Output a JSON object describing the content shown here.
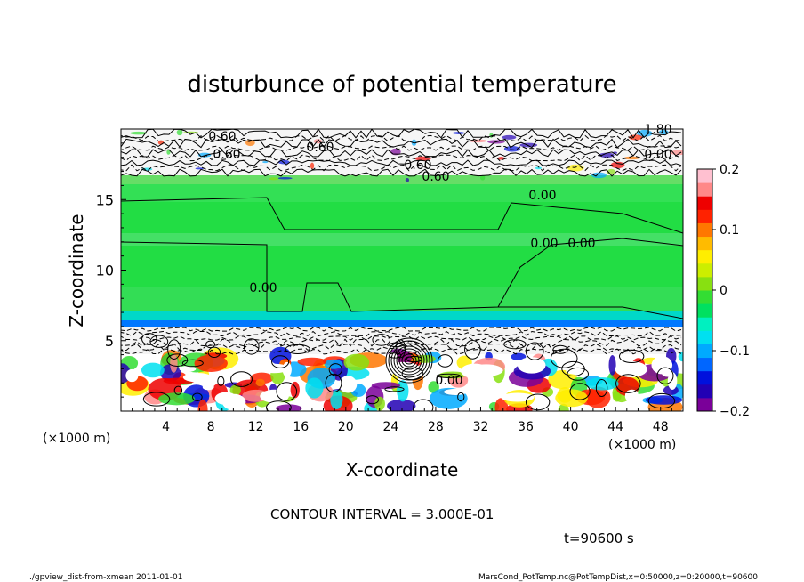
{
  "chart_data": {
    "type": "heatmap",
    "title": "disturbunce of potential temperature",
    "xlabel": "X-coordinate",
    "ylabel": "Z-coordinate",
    "x_unit": "(×1000 m)",
    "y_unit": "(×1000 m)",
    "x_ticks": [
      "4",
      "8",
      "12",
      "16",
      "20",
      "24",
      "28",
      "32",
      "36",
      "40",
      "44",
      "48"
    ],
    "y_ticks": [
      "5",
      "10",
      "15"
    ],
    "xlim": [
      0,
      50
    ],
    "ylim": [
      0,
      20
    ],
    "colorbar": {
      "ticks": [
        "0.2",
        "0.1",
        "0",
        "−0.1",
        "−0.2"
      ],
      "range": [
        -0.2,
        0.2
      ],
      "colors": [
        "#7a0099",
        "#2200b4",
        "#0011dd",
        "#0066ff",
        "#00aaff",
        "#00e0f0",
        "#00f0c0",
        "#00e060",
        "#33dd33",
        "#88e011",
        "#ccee00",
        "#ffee00",
        "#ffbb00",
        "#ff7700",
        "#ff2200",
        "#ee0000",
        "#ff8888",
        "#ffc0d0"
      ]
    },
    "contour_labels": [
      "0.60",
      "0.60",
      "0.60",
      "0.60",
      "0.60",
      "1.80",
      "0.00",
      "0.00",
      "0.00",
      "0.00",
      "0.00",
      "0.00"
    ],
    "contour_interval_text": "CONTOUR INTERVAL = 3.000E-01",
    "time_text": "t=90600 s"
  },
  "footer": {
    "left": "./gpview_dist-from-xmean  2011-01-01",
    "right": "MarsCond_PotTemp.nc@PotTempDist,x=0:50000,z=0:20000,t=90600"
  }
}
